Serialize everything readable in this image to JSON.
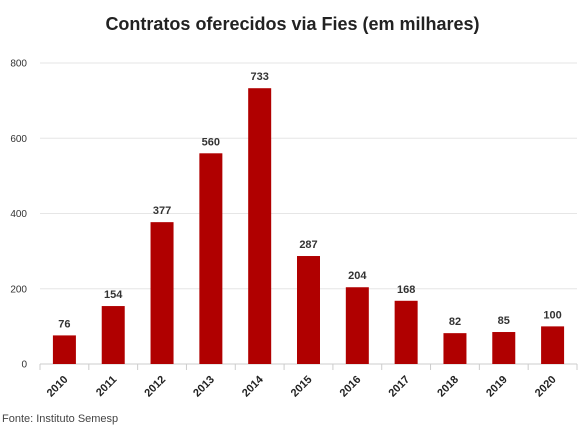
{
  "chart_data": {
    "type": "bar",
    "title": "Contratos oferecidos via Fies (em milhares)",
    "categories": [
      "2010",
      "2011",
      "2012",
      "2013",
      "2014",
      "2015",
      "2016",
      "2017",
      "2018",
      "2019",
      "2020"
    ],
    "values": [
      76,
      154,
      377,
      560,
      733,
      287,
      204,
      168,
      82,
      85,
      100
    ],
    "xlabel": "",
    "ylabel": "",
    "ylim": [
      0,
      800
    ],
    "yticks": [
      0,
      200,
      400,
      600,
      800
    ],
    "grid": true,
    "legend": "none",
    "bar_color": "#b00000",
    "grid_color": "#e6e6e6"
  },
  "source": "Fonte: Instituto Semesp"
}
